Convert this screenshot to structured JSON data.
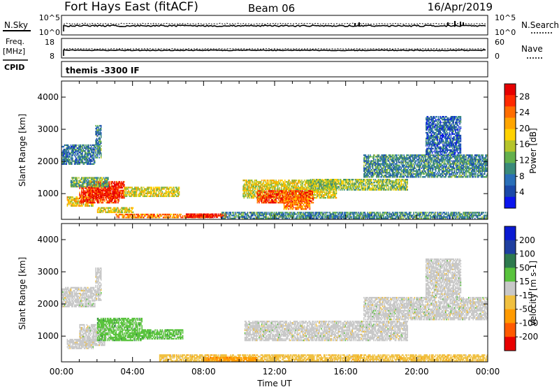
{
  "header": {
    "station": "Fort Hays East (fitACF)",
    "beam": "Beam 06",
    "date": "16/Apr/2019"
  },
  "top_panels": {
    "nsky": {
      "label": "N.Sky",
      "ticks": [
        "10^5",
        "10^0"
      ]
    },
    "nsearch": {
      "label": "N.Search",
      "ticks": [
        "10^5",
        "10^0"
      ]
    },
    "freq": {
      "label_line1": "Freq.",
      "label_line2": "[MHz]",
      "ticks": [
        "18",
        "8"
      ]
    },
    "nave": {
      "label": "Nave",
      "ticks": [
        "60",
        "0"
      ]
    },
    "cpid": {
      "label": "CPID",
      "value": "themis -3300 IF"
    }
  },
  "chart_data": [
    {
      "type": "heatmap",
      "name": "power",
      "ylabel": "Slant Range [km]",
      "xlabel": "Time UT",
      "xlim": [
        0,
        24
      ],
      "ylim": [
        200,
        4500
      ],
      "y_ticks": [
        "1000",
        "2000",
        "3000",
        "4000"
      ],
      "x_ticks": [
        "00:00",
        "04:00",
        "08:00",
        "12:00",
        "16:00",
        "20:00",
        "00:00"
      ],
      "colorbar": {
        "label": "Power [dB]",
        "tick_labels": [
          "4",
          "8",
          "12",
          "16",
          "20",
          "24",
          "28"
        ],
        "colors": [
          "#0b15ee",
          "#1b49a8",
          "#2a6fb8",
          "#3a8a7a",
          "#64b04d",
          "#b5c42b",
          "#ffd200",
          "#ffa500",
          "#ff6d00",
          "#ff2a00",
          "#e60000"
        ]
      },
      "regions": [
        {
          "t0": 0.0,
          "t1": 1.9,
          "r0": 1900,
          "r1": 2500,
          "level": 0.25
        },
        {
          "t0": 0.3,
          "t1": 1.8,
          "r0": 600,
          "r1": 900,
          "level": 0.6
        },
        {
          "t0": 1.0,
          "t1": 3.2,
          "r0": 700,
          "r1": 1200,
          "level": 0.85
        },
        {
          "t0": 1.5,
          "t1": 3.5,
          "r0": 850,
          "r1": 1350,
          "level": 0.9
        },
        {
          "t0": 3.5,
          "t1": 6.6,
          "r0": 900,
          "r1": 1200,
          "level": 0.55
        },
        {
          "t0": 0.5,
          "t1": 2.6,
          "r0": 1200,
          "r1": 1500,
          "level": 0.4
        },
        {
          "t0": 1.9,
          "t1": 2.2,
          "r0": 2100,
          "r1": 3100,
          "level": 0.3
        },
        {
          "t0": 2.0,
          "t1": 4.0,
          "r0": 400,
          "r1": 550,
          "level": 0.55
        },
        {
          "t0": 3.0,
          "t1": 8.5,
          "r0": 240,
          "r1": 340,
          "level": 0.75
        },
        {
          "t0": 7.0,
          "t1": 9.3,
          "r0": 250,
          "r1": 380,
          "level": 0.95
        },
        {
          "t0": 9.0,
          "t1": 24.0,
          "r0": 210,
          "r1": 400,
          "level": 0.3
        },
        {
          "t0": 10.2,
          "t1": 15.5,
          "r0": 850,
          "r1": 1400,
          "level": 0.55
        },
        {
          "t0": 11.0,
          "t1": 14.2,
          "r0": 700,
          "r1": 1100,
          "level": 0.85
        },
        {
          "t0": 12.5,
          "t1": 14.0,
          "r0": 500,
          "r1": 900,
          "level": 0.75
        },
        {
          "t0": 14.0,
          "t1": 19.5,
          "r0": 1100,
          "r1": 1450,
          "level": 0.45
        },
        {
          "t0": 17.0,
          "t1": 24.0,
          "r0": 1500,
          "r1": 2200,
          "level": 0.3
        },
        {
          "t0": 20.5,
          "t1": 22.5,
          "r0": 2200,
          "r1": 3400,
          "level": 0.2
        }
      ]
    },
    {
      "type": "heatmap",
      "name": "velocity",
      "ylabel": "Slant Range [km]",
      "xlabel": "Time UT",
      "xlim": [
        0,
        24
      ],
      "ylim": [
        200,
        4500
      ],
      "y_ticks": [
        "1000",
        "2000",
        "3000",
        "4000"
      ],
      "x_ticks": [
        "00:00",
        "04:00",
        "08:00",
        "12:00",
        "16:00",
        "20:00",
        "00:00"
      ],
      "colorbar": {
        "label": "Velocity [m s-1]",
        "tick_labels": [
          "200",
          "100",
          "50",
          "15",
          "-15",
          "-50",
          "-100",
          "-200"
        ],
        "colors": [
          "#0a1ad2",
          "#1f3fa0",
          "#2e7a4e",
          "#59c33d",
          "#c8c8c8",
          "#f0c040",
          "#ff9a00",
          "#ff5a00",
          "#e80000"
        ]
      },
      "regions": [
        {
          "t0": 0.0,
          "t1": 1.9,
          "r0": 1900,
          "r1": 2500,
          "color": 4
        },
        {
          "t0": 0.3,
          "t1": 1.8,
          "r0": 600,
          "r1": 900,
          "color": 4
        },
        {
          "t0": 1.0,
          "t1": 2.4,
          "r0": 700,
          "r1": 1350,
          "color": 4
        },
        {
          "t0": 2.0,
          "t1": 4.5,
          "r0": 850,
          "r1": 1550,
          "color": 3
        },
        {
          "t0": 4.5,
          "t1": 6.8,
          "r0": 900,
          "r1": 1200,
          "color": 3
        },
        {
          "t0": 1.9,
          "t1": 2.2,
          "r0": 2100,
          "r1": 3100,
          "color": 4
        },
        {
          "t0": 5.5,
          "t1": 24.0,
          "r0": 210,
          "r1": 420,
          "color": 5
        },
        {
          "t0": 8.0,
          "t1": 11.0,
          "r0": 220,
          "r1": 330,
          "color": 6
        },
        {
          "t0": 10.3,
          "t1": 19.5,
          "r0": 850,
          "r1": 1450,
          "color": 4
        },
        {
          "t0": 17.0,
          "t1": 24.0,
          "r0": 1500,
          "r1": 2200,
          "color": 4
        },
        {
          "t0": 20.5,
          "t1": 22.5,
          "r0": 2200,
          "r1": 3400,
          "color": 4
        }
      ]
    }
  ]
}
